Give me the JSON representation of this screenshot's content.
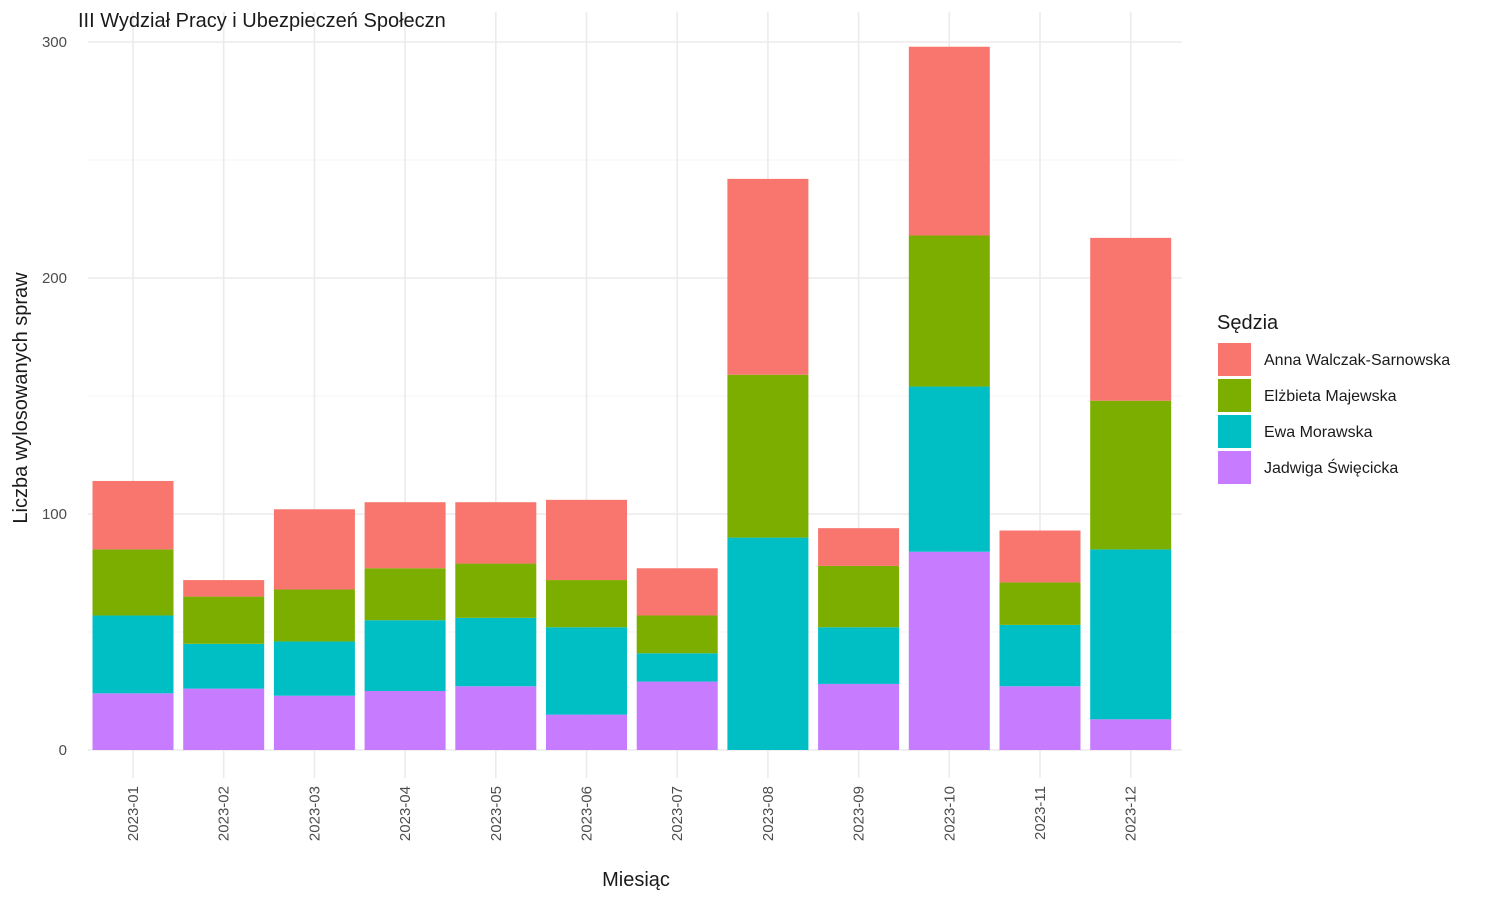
{
  "chart_data": {
    "type": "bar",
    "stacked": true,
    "title": "III Wydział Pracy i Ubezpieczeń Społeczn",
    "xlabel": "Miesiąc",
    "ylabel": "Liczba wylosowanych spraw",
    "ylim": [
      0,
      300
    ],
    "y_ticks": [
      0,
      100,
      200,
      300
    ],
    "grid": true,
    "legend_title": "Sędzia",
    "legend_position": "right",
    "categories": [
      "2023-01",
      "2023-02",
      "2023-03",
      "2023-04",
      "2023-05",
      "2023-06",
      "2023-07",
      "2023-08",
      "2023-09",
      "2023-10",
      "2023-11",
      "2023-12"
    ],
    "series": [
      {
        "name": "Jadwiga Święcicka",
        "color": "#C77CFF",
        "values": [
          24,
          26,
          23,
          25,
          27,
          15,
          29,
          0,
          28,
          84,
          27,
          13
        ]
      },
      {
        "name": "Ewa Morawska",
        "color": "#00BFC4",
        "values": [
          33,
          19,
          23,
          30,
          29,
          37,
          12,
          90,
          24,
          70,
          26,
          72
        ]
      },
      {
        "name": "Elżbieta Majewska",
        "color": "#7CAE00",
        "values": [
          28,
          20,
          22,
          22,
          23,
          20,
          16,
          69,
          26,
          64,
          18,
          63
        ]
      },
      {
        "name": "Anna Walczak-Sarnowska",
        "color": "#F8766D",
        "values": [
          29,
          7,
          34,
          28,
          26,
          34,
          20,
          83,
          16,
          80,
          22,
          69
        ]
      }
    ],
    "legend_order": [
      "Anna Walczak-Sarnowska",
      "Elżbieta Majewska",
      "Ewa Morawska",
      "Jadwiga Święcicka"
    ]
  }
}
